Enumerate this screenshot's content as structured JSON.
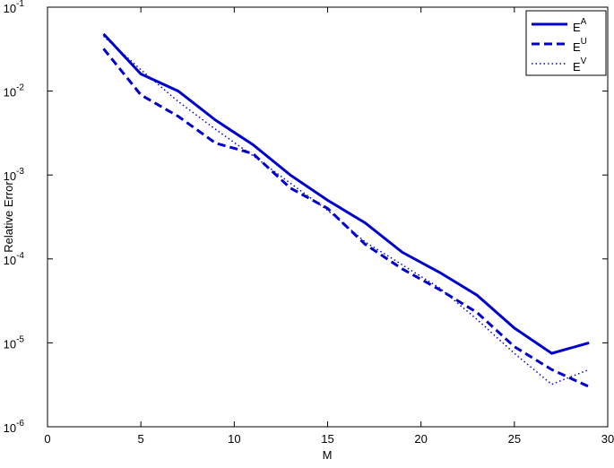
{
  "chart_data": {
    "type": "line",
    "xlabel": "M",
    "ylabel": "Relative Error",
    "x": [
      3,
      5,
      7,
      9,
      11,
      13,
      15,
      17,
      19,
      21,
      23,
      25,
      27,
      29
    ],
    "series": [
      {
        "name": "E",
        "name_sup": "A",
        "color": "#0000cc",
        "dash": "solid",
        "values": [
          0.048,
          0.016,
          0.01,
          0.0045,
          0.0023,
          0.001,
          0.0005,
          0.00027,
          0.00012,
          6.9e-05,
          3.7e-05,
          1.5e-05,
          7.5e-06,
          1e-05
        ]
      },
      {
        "name": "E",
        "name_sup": "U",
        "color": "#0000cc",
        "dash": "dashed",
        "values": [
          0.032,
          0.009,
          0.005,
          0.0024,
          0.0018,
          0.0007,
          0.0004,
          0.00015,
          7.6e-05,
          4.3e-05,
          2.3e-05,
          9e-06,
          4.8e-06,
          3e-06
        ]
      },
      {
        "name": "E",
        "name_sup": "V",
        "color": "#0000cc",
        "dash": "dotted",
        "values": [
          0.045,
          0.018,
          0.0075,
          0.0035,
          0.0017,
          0.0008,
          0.00038,
          0.00016,
          8.5e-05,
          4.5e-05,
          1.9e-05,
          7.5e-06,
          3.2e-06,
          4.8e-06
        ]
      }
    ],
    "xlim": [
      0,
      30
    ],
    "xticks": [
      0,
      5,
      10,
      15,
      20,
      25,
      30
    ],
    "ylim": [
      1e-06,
      0.1
    ],
    "log_y": true,
    "yticks": [
      {
        "value": 1e-06,
        "label": "10",
        "exponent": "-6"
      },
      {
        "value": 1e-05,
        "label": "10",
        "exponent": "-5"
      },
      {
        "value": 0.0001,
        "label": "10",
        "exponent": "-4"
      },
      {
        "value": 0.001,
        "label": "10",
        "exponent": "-3"
      },
      {
        "value": 0.01,
        "label": "10",
        "exponent": "-2"
      },
      {
        "value": 0.1,
        "label": "10",
        "exponent": "-1"
      }
    ],
    "legend": "top-right"
  }
}
